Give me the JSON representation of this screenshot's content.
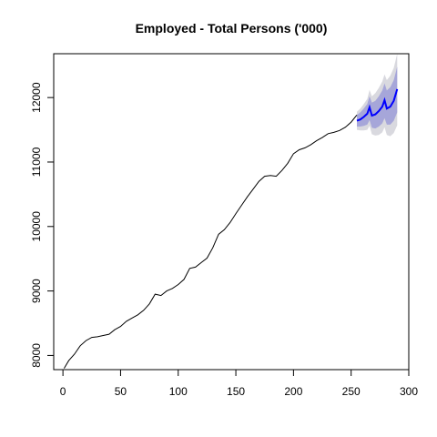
{
  "chart_data": {
    "type": "line",
    "title": "Employed - Total Persons ('000)",
    "xlabel": "",
    "ylabel": "",
    "xlim": [
      -8,
      300
    ],
    "ylim": [
      7780,
      12680
    ],
    "x_ticks": [
      0,
      50,
      100,
      150,
      200,
      250,
      300
    ],
    "y_ticks": [
      8000,
      9000,
      10000,
      11000,
      12000
    ],
    "grid": false,
    "legend": "none",
    "colors": {
      "history": "#000000",
      "forecast": "#0000ff",
      "band_80": "#a6a6d9",
      "band_95": "#d9d9df"
    },
    "series": [
      {
        "role": "history",
        "points": [
          [
            1,
            7800
          ],
          [
            5,
            7920
          ],
          [
            10,
            8020
          ],
          [
            15,
            8150
          ],
          [
            20,
            8230
          ],
          [
            25,
            8280
          ],
          [
            30,
            8290
          ],
          [
            35,
            8310
          ],
          [
            40,
            8330
          ],
          [
            45,
            8400
          ],
          [
            50,
            8450
          ],
          [
            55,
            8530
          ],
          [
            60,
            8580
          ],
          [
            65,
            8630
          ],
          [
            70,
            8700
          ],
          [
            75,
            8800
          ],
          [
            80,
            8950
          ],
          [
            85,
            8930
          ],
          [
            90,
            9000
          ],
          [
            95,
            9040
          ],
          [
            100,
            9100
          ],
          [
            105,
            9180
          ],
          [
            110,
            9350
          ],
          [
            115,
            9370
          ],
          [
            120,
            9440
          ],
          [
            125,
            9510
          ],
          [
            130,
            9670
          ],
          [
            135,
            9880
          ],
          [
            140,
            9950
          ],
          [
            145,
            10060
          ],
          [
            150,
            10200
          ],
          [
            155,
            10330
          ],
          [
            160,
            10460
          ],
          [
            165,
            10580
          ],
          [
            170,
            10700
          ],
          [
            175,
            10780
          ],
          [
            180,
            10790
          ],
          [
            185,
            10780
          ],
          [
            190,
            10870
          ],
          [
            195,
            10980
          ],
          [
            200,
            11130
          ],
          [
            205,
            11190
          ],
          [
            210,
            11220
          ],
          [
            215,
            11270
          ],
          [
            220,
            11330
          ],
          [
            225,
            11380
          ],
          [
            230,
            11440
          ],
          [
            235,
            11460
          ],
          [
            240,
            11490
          ],
          [
            245,
            11540
          ],
          [
            250,
            11620
          ],
          [
            255,
            11730
          ]
        ]
      },
      {
        "role": "forecast",
        "points": [
          [
            255,
            11640
          ],
          [
            258,
            11660
          ],
          [
            261,
            11700
          ],
          [
            264,
            11750
          ],
          [
            266,
            11850
          ],
          [
            268,
            11720
          ],
          [
            271,
            11740
          ],
          [
            274,
            11790
          ],
          [
            277,
            11860
          ],
          [
            279,
            11960
          ],
          [
            281,
            11830
          ],
          [
            284,
            11860
          ],
          [
            287,
            11950
          ],
          [
            290,
            12130
          ]
        ],
        "band_80": {
          "lower": [
            11550,
            11550,
            11560,
            11580,
            11650,
            11530,
            11520,
            11550,
            11600,
            11680,
            11580,
            11580,
            11640,
            11770
          ],
          "upper": [
            11730,
            11770,
            11830,
            11900,
            12020,
            11920,
            11950,
            12020,
            12110,
            12220,
            12110,
            12160,
            12270,
            12480
          ]
        },
        "band_95": {
          "lower": [
            11500,
            11490,
            11490,
            11500,
            11560,
            11430,
            11410,
            11420,
            11460,
            11540,
            11420,
            11400,
            11450,
            11570
          ],
          "upper": [
            11780,
            11830,
            11900,
            11980,
            12120,
            12020,
            12070,
            12150,
            12250,
            12360,
            12270,
            12340,
            12460,
            12680
          ]
        }
      }
    ]
  }
}
